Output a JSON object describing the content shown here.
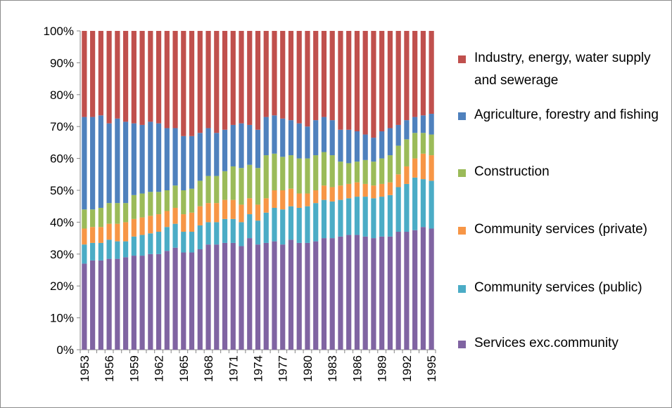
{
  "chart_data": {
    "type": "stacked_bar",
    "categories": [
      "1953",
      null,
      null,
      "1956",
      null,
      null,
      "1959",
      null,
      null,
      "1962",
      null,
      null,
      "1965",
      null,
      null,
      "1968",
      null,
      null,
      "1971",
      null,
      null,
      "1974",
      null,
      null,
      "1977",
      null,
      null,
      "1980",
      null,
      null,
      "1983",
      null,
      null,
      "1986",
      null,
      null,
      "1989",
      null,
      null,
      "1992",
      null,
      null,
      "1995"
    ],
    "series": [
      {
        "name": "Services exc.community",
        "color": "#8064a2",
        "values": [
          27,
          28,
          28,
          28.5,
          28.5,
          29,
          29.5,
          29.5,
          30,
          30,
          31,
          32,
          30.5,
          30.5,
          31.5,
          33,
          33,
          33.5,
          33.5,
          32.5,
          35,
          33,
          33.5,
          34,
          33,
          34.5,
          33.5,
          33.5,
          34,
          35,
          35,
          35.5,
          36,
          36,
          35.5,
          35,
          35.5,
          35.5,
          37,
          37,
          37.5,
          38.5,
          38
        ]
      },
      {
        "name": "Community services (public)",
        "color": "#4bacc6",
        "values": [
          6,
          5.5,
          5.5,
          6,
          5.5,
          5,
          6,
          6.5,
          6.5,
          7,
          7.5,
          7.5,
          6.5,
          6.5,
          7.5,
          7,
          7,
          7.5,
          7.5,
          7.5,
          7.5,
          7.5,
          9.5,
          10.5,
          11,
          10.5,
          11,
          11.5,
          12,
          12,
          11.5,
          11.5,
          11.5,
          12,
          12.5,
          12.5,
          12.5,
          13,
          14,
          15,
          16.5,
          15,
          15
        ]
      },
      {
        "name": "Community services (private)",
        "color": "#f79646",
        "values": [
          5,
          5,
          5,
          5,
          5.5,
          6,
          5.5,
          5.5,
          5.5,
          5.5,
          5,
          5,
          5.5,
          6,
          6,
          6,
          6,
          6,
          6,
          5.5,
          5,
          5,
          4.5,
          5.5,
          6,
          5.5,
          4.5,
          4,
          4,
          4.5,
          4.5,
          4.5,
          4.5,
          4.5,
          4,
          4,
          4,
          4,
          4,
          5.5,
          6,
          8,
          8
        ]
      },
      {
        "name": "Construction",
        "color": "#9bbb59",
        "values": [
          6,
          5.5,
          6,
          6.5,
          6.5,
          6,
          7.5,
          7.5,
          7.5,
          7,
          6.5,
          7,
          7.5,
          7.5,
          8,
          8.5,
          8.5,
          9,
          10.5,
          11.5,
          10.5,
          11.5,
          13.5,
          11.5,
          10.5,
          10.5,
          11,
          11,
          11,
          10.5,
          10,
          7.5,
          6.5,
          6.5,
          7.5,
          7.5,
          8,
          8.5,
          9,
          8.5,
          8,
          6.5,
          6.5
        ]
      },
      {
        "name": "Agriculture, forestry and fishing",
        "color": "#4f81bd",
        "values": [
          29,
          29,
          29,
          25,
          26.5,
          25.5,
          22.5,
          21.5,
          22,
          21.5,
          19.5,
          18,
          17,
          16.5,
          15,
          15,
          13.5,
          13,
          13,
          14,
          12.5,
          12,
          12,
          12,
          12,
          11,
          11,
          10,
          11,
          11,
          11,
          10,
          10.5,
          9.5,
          8,
          7.5,
          8.5,
          8.5,
          6.5,
          6,
          5,
          5.5,
          6.5
        ]
      },
      {
        "name": "Industry, energy, water supply and sewerage",
        "color": "#c0504d",
        "values": [
          27,
          27,
          26.5,
          29,
          27.5,
          28.5,
          29,
          29.5,
          28.5,
          29,
          30.5,
          30.5,
          33,
          33,
          32,
          30.5,
          32,
          31,
          29.5,
          29,
          29.5,
          31,
          27,
          26.5,
          27.5,
          28,
          29,
          30,
          28,
          27,
          28,
          31,
          31,
          31.5,
          32.5,
          33.5,
          31.5,
          30.5,
          29.5,
          28,
          27,
          26.5,
          26
        ]
      }
    ],
    "ylim": [
      0,
      100
    ],
    "yticks": [
      {
        "value": 0,
        "label": "0%"
      },
      {
        "value": 10,
        "label": "10%"
      },
      {
        "value": 20,
        "label": "20%"
      },
      {
        "value": 30,
        "label": "30%"
      },
      {
        "value": 40,
        "label": "40%"
      },
      {
        "value": 50,
        "label": "50%"
      },
      {
        "value": 60,
        "label": "60%"
      },
      {
        "value": 70,
        "label": "70%"
      },
      {
        "value": 80,
        "label": "80%"
      },
      {
        "value": 90,
        "label": "90%"
      },
      {
        "value": 100,
        "label": "100%"
      }
    ],
    "legend": "right"
  }
}
